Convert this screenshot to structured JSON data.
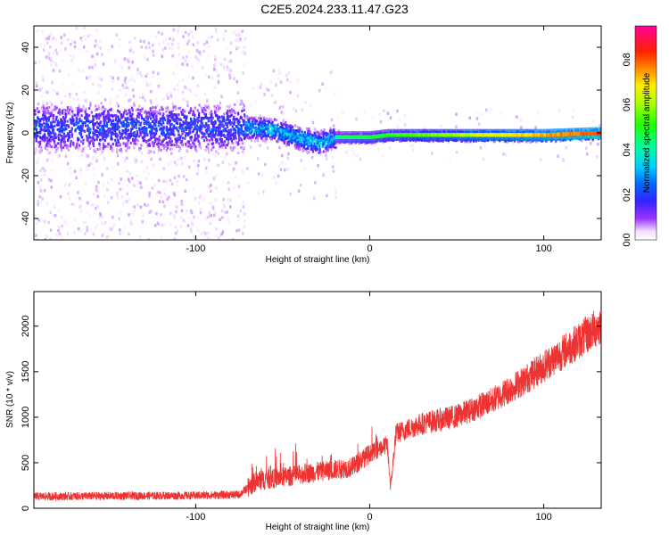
{
  "title": "C2E5.2024.233.11.47.G23",
  "chart_data": [
    {
      "type": "heatmap",
      "xlabel": "Height of straight line (km)",
      "ylabel": "Frequency (Hz)",
      "xlim": [
        -193,
        133
      ],
      "ylim": [
        -50,
        50
      ],
      "xticks": [
        -100,
        0,
        100
      ],
      "yticks": [
        -40,
        -20,
        0,
        20,
        40
      ],
      "colorbar": {
        "label": "Normalized spectral amplitude",
        "range": [
          0,
          0.95
        ],
        "ticks": [
          0,
          0.2,
          0.4,
          0.6,
          0.8
        ],
        "colormap": "hsv-like: white, violet, blue, cyan, green, yellow, orange, red, magenta"
      },
      "ridge": {
        "description_points": [
          {
            "x": -70,
            "y": 3
          },
          {
            "x": -55,
            "y": 2
          },
          {
            "x": -40,
            "y": -2
          },
          {
            "x": -30,
            "y": -4
          },
          {
            "x": -20,
            "y": -2
          },
          {
            "x": 0,
            "y": -2
          },
          {
            "x": 10,
            "y": -1
          },
          {
            "x": 50,
            "y": -1
          },
          {
            "x": 100,
            "y": -1
          },
          {
            "x": 133,
            "y": 0
          }
        ]
      }
    },
    {
      "type": "line",
      "xlabel": "Height of straight line (km)",
      "ylabel": "SNR (10 * v/v)",
      "xlim": [
        -193,
        133
      ],
      "ylim": [
        0,
        2380
      ],
      "xticks": [
        -100,
        0,
        100
      ],
      "yticks": [
        0,
        500,
        1000,
        1500,
        2000
      ],
      "color": "#ee3333",
      "trend": [
        {
          "x": -193,
          "y": 130
        },
        {
          "x": -150,
          "y": 135
        },
        {
          "x": -100,
          "y": 140
        },
        {
          "x": -75,
          "y": 150
        },
        {
          "x": -65,
          "y": 300
        },
        {
          "x": -50,
          "y": 340
        },
        {
          "x": -30,
          "y": 400
        },
        {
          "x": -10,
          "y": 450
        },
        {
          "x": 0,
          "y": 600
        },
        {
          "x": 10,
          "y": 700
        },
        {
          "x": 12,
          "y": 230
        },
        {
          "x": 15,
          "y": 820
        },
        {
          "x": 30,
          "y": 930
        },
        {
          "x": 50,
          "y": 1010
        },
        {
          "x": 70,
          "y": 1180
        },
        {
          "x": 90,
          "y": 1420
        },
        {
          "x": 110,
          "y": 1700
        },
        {
          "x": 133,
          "y": 2020
        }
      ]
    }
  ]
}
